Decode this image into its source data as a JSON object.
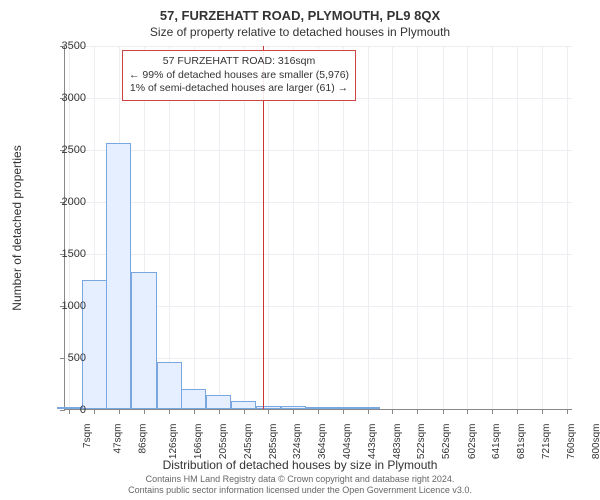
{
  "title": "57, FURZEHATT ROAD, PLYMOUTH, PL9 8QX",
  "subtitle": "Size of property relative to detached houses in Plymouth",
  "chart": {
    "type": "histogram",
    "ylabel": "Number of detached properties",
    "xlabel": "Distribution of detached houses by size in Plymouth",
    "ylim": [
      0,
      3500
    ],
    "ytick_step": 500,
    "yticks": [
      0,
      500,
      1000,
      1500,
      2000,
      2500,
      3000,
      3500
    ],
    "xlim": [
      0,
      810
    ],
    "xticks": [
      7,
      47,
      86,
      126,
      166,
      205,
      245,
      285,
      324,
      364,
      404,
      443,
      483,
      522,
      562,
      602,
      641,
      681,
      721,
      760,
      800
    ],
    "xtick_labels": [
      "7sqm",
      "47sqm",
      "86sqm",
      "126sqm",
      "166sqm",
      "205sqm",
      "245sqm",
      "285sqm",
      "324sqm",
      "364sqm",
      "404sqm",
      "443sqm",
      "483sqm",
      "522sqm",
      "562sqm",
      "602sqm",
      "641sqm",
      "681sqm",
      "721sqm",
      "760sqm",
      "800sqm"
    ],
    "bar_fill": "#e6efff",
    "bar_stroke": "#7aa7e0",
    "bar_width_sqm": 40,
    "background_color": "#ffffff",
    "grid_color": "#eceef2",
    "axis_color": "#888888",
    "bars": [
      {
        "x": 7,
        "count": 5
      },
      {
        "x": 47,
        "count": 1240
      },
      {
        "x": 86,
        "count": 2560
      },
      {
        "x": 126,
        "count": 1320
      },
      {
        "x": 166,
        "count": 450
      },
      {
        "x": 205,
        "count": 195
      },
      {
        "x": 245,
        "count": 130
      },
      {
        "x": 285,
        "count": 80
      },
      {
        "x": 324,
        "count": 25
      },
      {
        "x": 364,
        "count": 25
      },
      {
        "x": 404,
        "count": 10
      },
      {
        "x": 443,
        "count": 5
      },
      {
        "x": 483,
        "count": 20
      }
    ],
    "marker": {
      "value_sqm": 316,
      "color": "#cc3333"
    },
    "annotation": {
      "line1": "57 FURZEHATT ROAD: 316sqm",
      "line2": "← 99% of detached houses are smaller (5,976)",
      "line3": "1% of semi-detached houses are larger (61) →",
      "border_color": "#cc4444"
    }
  },
  "footer": {
    "line1": "Contains HM Land Registry data © Crown copyright and database right 2024.",
    "line2": "Contains public sector information licensed under the Open Government Licence v3.0."
  }
}
